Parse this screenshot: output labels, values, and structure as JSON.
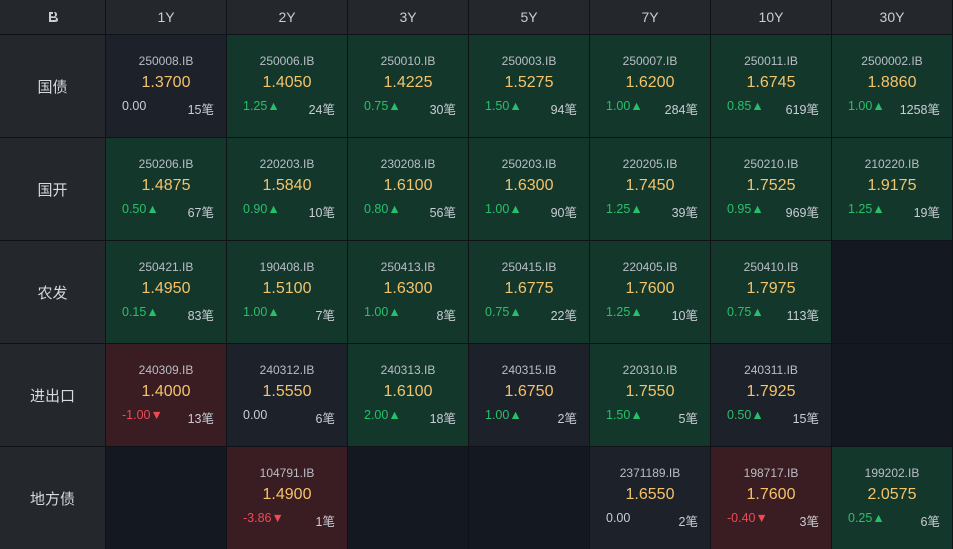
{
  "header": {
    "columns": [
      "1Y",
      "2Y",
      "3Y",
      "5Y",
      "7Y",
      "10Y",
      "30Y"
    ]
  },
  "rows": [
    {
      "label": "国债",
      "cells": [
        {
          "state": "n",
          "code": "250008.IB",
          "yield": "1.3700",
          "change": "0.00",
          "dir": "flat",
          "count": "15笔"
        },
        {
          "state": "g",
          "code": "250006.IB",
          "yield": "1.4050",
          "change": "1.25▲",
          "dir": "up",
          "count": "24笔"
        },
        {
          "state": "g",
          "code": "250010.IB",
          "yield": "1.4225",
          "change": "0.75▲",
          "dir": "up",
          "count": "30笔"
        },
        {
          "state": "g",
          "code": "250003.IB",
          "yield": "1.5275",
          "change": "1.50▲",
          "dir": "up",
          "count": "94笔"
        },
        {
          "state": "g",
          "code": "250007.IB",
          "yield": "1.6200",
          "change": "1.00▲",
          "dir": "up",
          "count": "284笔"
        },
        {
          "state": "g",
          "code": "250011.IB",
          "yield": "1.6745",
          "change": "0.85▲",
          "dir": "up",
          "count": "619笔"
        },
        {
          "state": "g",
          "code": "2500002.IB",
          "yield": "1.8860",
          "change": "1.00▲",
          "dir": "up",
          "count": "1258笔"
        }
      ]
    },
    {
      "label": "国开",
      "cells": [
        {
          "state": "g",
          "code": "250206.IB",
          "yield": "1.4875",
          "change": "0.50▲",
          "dir": "up",
          "count": "67笔"
        },
        {
          "state": "g",
          "code": "220203.IB",
          "yield": "1.5840",
          "change": "0.90▲",
          "dir": "up",
          "count": "10笔"
        },
        {
          "state": "g",
          "code": "230208.IB",
          "yield": "1.6100",
          "change": "0.80▲",
          "dir": "up",
          "count": "56笔"
        },
        {
          "state": "g",
          "code": "250203.IB",
          "yield": "1.6300",
          "change": "1.00▲",
          "dir": "up",
          "count": "90笔"
        },
        {
          "state": "g",
          "code": "220205.IB",
          "yield": "1.7450",
          "change": "1.25▲",
          "dir": "up",
          "count": "39笔"
        },
        {
          "state": "g",
          "code": "250210.IB",
          "yield": "1.7525",
          "change": "0.95▲",
          "dir": "up",
          "count": "969笔"
        },
        {
          "state": "g",
          "code": "210220.IB",
          "yield": "1.9175",
          "change": "1.25▲",
          "dir": "up",
          "count": "19笔"
        }
      ]
    },
    {
      "label": "农发",
      "cells": [
        {
          "state": "g",
          "code": "250421.IB",
          "yield": "1.4950",
          "change": "0.15▲",
          "dir": "up",
          "count": "83笔"
        },
        {
          "state": "g",
          "code": "190408.IB",
          "yield": "1.5100",
          "change": "1.00▲",
          "dir": "up",
          "count": "7笔"
        },
        {
          "state": "g",
          "code": "250413.IB",
          "yield": "1.6300",
          "change": "1.00▲",
          "dir": "up",
          "count": "8笔"
        },
        {
          "state": "g",
          "code": "250415.IB",
          "yield": "1.6775",
          "change": "0.75▲",
          "dir": "up",
          "count": "22笔"
        },
        {
          "state": "g",
          "code": "220405.IB",
          "yield": "1.7600",
          "change": "1.25▲",
          "dir": "up",
          "count": "10笔"
        },
        {
          "state": "g",
          "code": "250410.IB",
          "yield": "1.7975",
          "change": "0.75▲",
          "dir": "up",
          "count": "113笔"
        },
        {
          "state": "e",
          "code": "",
          "yield": "",
          "change": "",
          "dir": "flat",
          "count": ""
        }
      ]
    },
    {
      "label": "进出口",
      "cells": [
        {
          "state": "r",
          "code": "240309.IB",
          "yield": "1.4000",
          "change": "-1.00▼",
          "dir": "down",
          "count": "13笔"
        },
        {
          "state": "n",
          "code": "240312.IB",
          "yield": "1.5550",
          "change": "0.00",
          "dir": "flat",
          "count": "6笔"
        },
        {
          "state": "g",
          "code": "240313.IB",
          "yield": "1.6100",
          "change": "2.00▲",
          "dir": "up",
          "count": "18笔"
        },
        {
          "state": "n",
          "code": "240315.IB",
          "yield": "1.6750",
          "change": "1.00▲",
          "dir": "up",
          "count": "2笔"
        },
        {
          "state": "g",
          "code": "220310.IB",
          "yield": "1.7550",
          "change": "1.50▲",
          "dir": "up",
          "count": "5笔"
        },
        {
          "state": "n",
          "code": "240311.IB",
          "yield": "1.7925",
          "change": "0.50▲",
          "dir": "up",
          "count": "15笔"
        },
        {
          "state": "e",
          "code": "",
          "yield": "",
          "change": "",
          "dir": "flat",
          "count": ""
        }
      ]
    },
    {
      "label": "地方债",
      "cells": [
        {
          "state": "e",
          "code": "",
          "yield": "",
          "change": "",
          "dir": "flat",
          "count": ""
        },
        {
          "state": "r",
          "code": "104791.IB",
          "yield": "1.4900",
          "change": "-3.86▼",
          "dir": "down",
          "count": "1笔"
        },
        {
          "state": "e",
          "code": "",
          "yield": "",
          "change": "",
          "dir": "flat",
          "count": ""
        },
        {
          "state": "e",
          "code": "",
          "yield": "",
          "change": "",
          "dir": "flat",
          "count": ""
        },
        {
          "state": "n",
          "code": "2371189.IB",
          "yield": "1.6550",
          "change": "0.00",
          "dir": "flat",
          "count": "2笔"
        },
        {
          "state": "r",
          "code": "198717.IB",
          "yield": "1.7600",
          "change": "-0.40▼",
          "dir": "down",
          "count": "3笔"
        },
        {
          "state": "g",
          "code": "199202.IB",
          "yield": "2.0575",
          "change": "0.25▲",
          "dir": "up",
          "count": "6笔"
        }
      ]
    }
  ]
}
